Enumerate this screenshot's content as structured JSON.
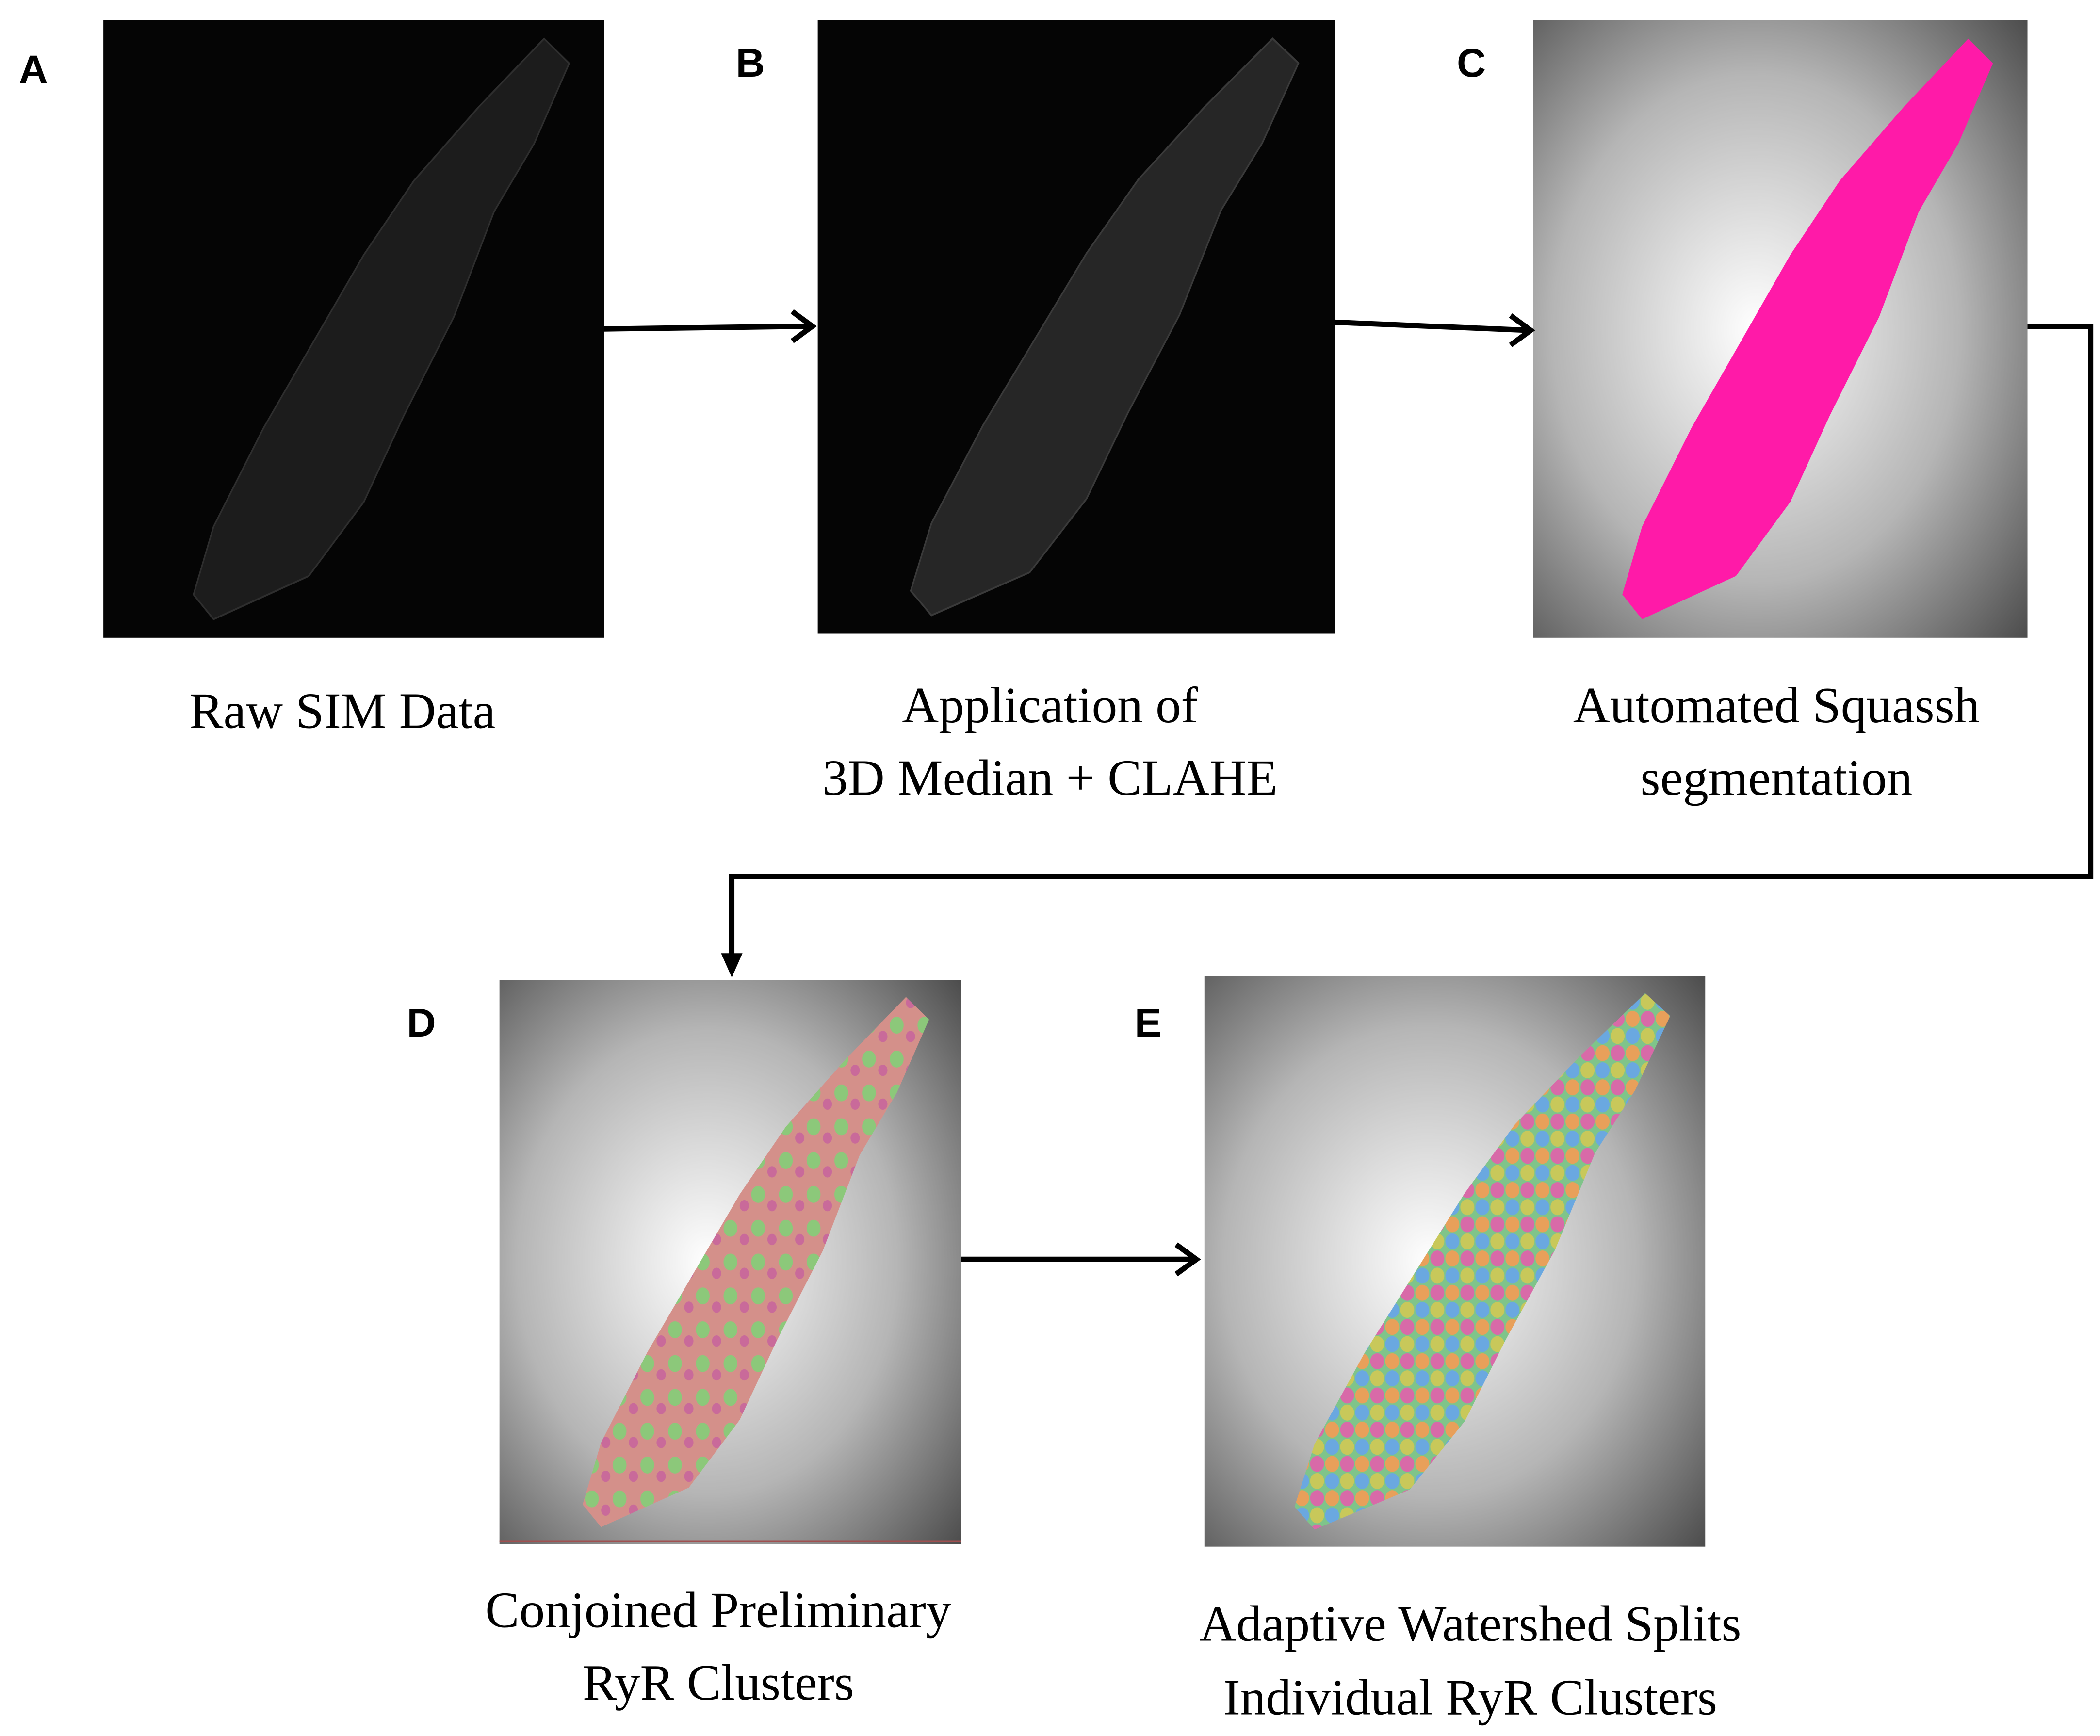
{
  "panels": [
    {
      "label": "A",
      "caption": [
        "Raw SIM Data"
      ]
    },
    {
      "label": "B",
      "caption": [
        "Application of",
        "3D Median + CLAHE"
      ]
    },
    {
      "label": "C",
      "caption": [
        "Automated Squassh",
        "segmentation"
      ]
    },
    {
      "label": "D",
      "caption": [
        "Conjoined Preliminary",
        "RyR Clusters"
      ]
    },
    {
      "label": "E",
      "caption": [
        "Adaptive Watershed Splits",
        "Individual RyR Clusters"
      ]
    }
  ]
}
